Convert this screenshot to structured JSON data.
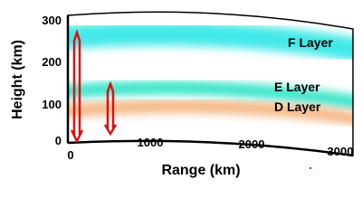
{
  "axes": {
    "y_label": "Height (km)",
    "x_label": "Range (km)",
    "y_ticks": [
      "300",
      "200",
      "100",
      "0"
    ],
    "x_ticks": [
      "0",
      "1000",
      "2000",
      "3000"
    ]
  },
  "layers": [
    {
      "label": "F Layer"
    },
    {
      "label": "E Layer"
    },
    {
      "label": "D Layer"
    }
  ]
}
